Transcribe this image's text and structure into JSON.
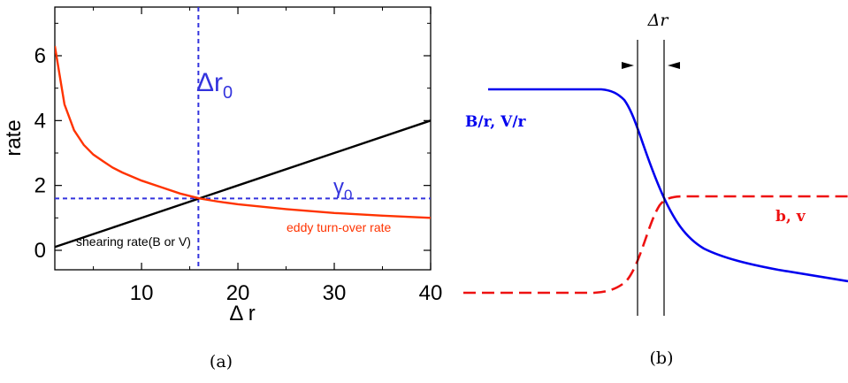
{
  "chart_data": [
    {
      "panel": "a",
      "type": "line",
      "caption": "(a)",
      "xlabel": "Δ r",
      "ylabel": "rate",
      "xlim": [
        1,
        40
      ],
      "ylim": [
        -0.6,
        7.5
      ],
      "xticks": [
        10,
        20,
        30,
        40
      ],
      "yticks": [
        0,
        2,
        4,
        6
      ],
      "series": [
        {
          "name": "shearing rate(B or V)",
          "color": "#000000",
          "style": "solid",
          "x": [
            1,
            40
          ],
          "y": [
            0.1,
            4.0
          ]
        },
        {
          "name": "eddy turn-over rate",
          "color": "#ff3300",
          "style": "solid",
          "x": [
            1,
            2,
            3,
            4,
            5,
            6,
            7,
            8,
            10,
            12,
            14,
            16,
            18,
            20,
            25,
            30,
            35,
            40
          ],
          "y": [
            6.3,
            4.5,
            3.7,
            3.25,
            2.95,
            2.75,
            2.55,
            2.4,
            2.15,
            1.95,
            1.75,
            1.6,
            1.5,
            1.42,
            1.27,
            1.15,
            1.07,
            1.0
          ]
        }
      ],
      "reference_lines": [
        {
          "label": "Δr",
          "subscript": "0",
          "axis": "x",
          "value": 15.9,
          "color": "#3333dd",
          "style": "dashed"
        },
        {
          "label": "γ",
          "subscript": "0",
          "axis": "y",
          "value": 1.6,
          "color": "#3333dd",
          "style": "dashed"
        }
      ]
    },
    {
      "panel": "b",
      "type": "line",
      "caption": "(b)",
      "annotation": "Δr",
      "series": [
        {
          "name": "B/r, V/r",
          "color": "#0000ee",
          "style": "solid"
        },
        {
          "name": "b, v",
          "color": "#ee1111",
          "style": "dashed"
        }
      ]
    }
  ]
}
